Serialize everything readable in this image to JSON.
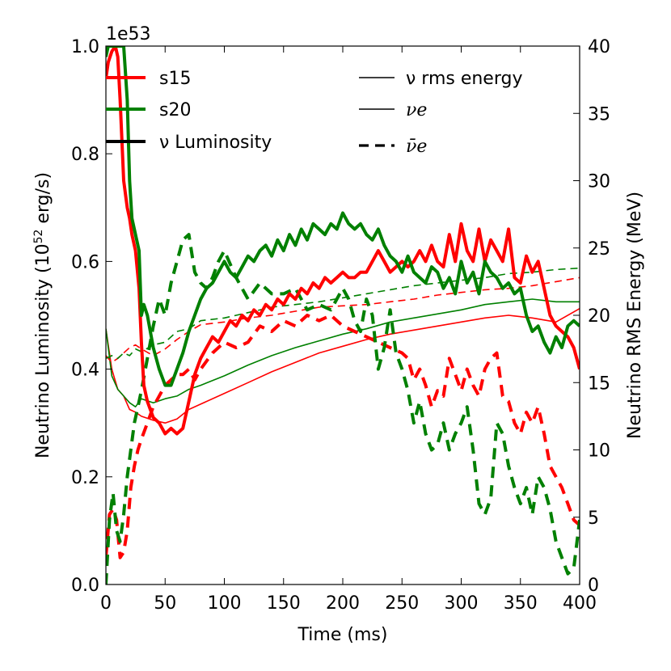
{
  "chart_data": {
    "type": "line",
    "xlabel": "Time (ms)",
    "ylabel_left": "Neutrino Luminosity (10",
    "ylabel_left_exp": "52",
    "ylabel_left_unit": " erg/s)",
    "ylabel_right": "Neutrino RMS Energy (MeV)",
    "offset_text": "1e53",
    "xlim": [
      0,
      400
    ],
    "ylim_left": [
      0.0,
      1.0
    ],
    "ylim_right": [
      0,
      40
    ],
    "x_ticks": [
      0,
      50,
      100,
      150,
      200,
      250,
      300,
      350,
      400
    ],
    "y_left_ticks": [
      "0.0",
      "0.2",
      "0.4",
      "0.6",
      "0.8",
      "1.0"
    ],
    "y_right_ticks": [
      0,
      5,
      10,
      15,
      20,
      25,
      30,
      35,
      40
    ],
    "colors": {
      "s15": "#ff0000",
      "s20": "#008000"
    },
    "legend_left": [
      {
        "label": "s15",
        "color": "#ff0000"
      },
      {
        "label": "s20",
        "color": "#008000"
      },
      {
        "label": "ν Luminosity",
        "color": "#000000"
      }
    ],
    "legend_right": [
      {
        "label": "ν rms energy",
        "style": "solid"
      },
      {
        "label": "νe",
        "style": "solid"
      },
      {
        "label": "ν̄e",
        "style": "dashed"
      }
    ],
    "series": [
      {
        "name": "s15 ν_e luminosity",
        "model": "s15",
        "flavor": "nue",
        "axis": "left",
        "style": "solid-thick",
        "x": [
          0,
          2,
          5,
          8,
          10,
          12,
          15,
          18,
          20,
          22,
          25,
          28,
          30,
          32,
          35,
          40,
          45,
          50,
          55,
          60,
          65,
          70,
          75,
          80,
          85,
          90,
          95,
          100,
          105,
          110,
          115,
          120,
          125,
          130,
          135,
          140,
          145,
          150,
          155,
          160,
          165,
          170,
          175,
          180,
          185,
          190,
          195,
          200,
          205,
          210,
          215,
          220,
          225,
          230,
          235,
          240,
          245,
          250,
          255,
          260,
          265,
          270,
          275,
          280,
          285,
          290,
          295,
          300,
          305,
          310,
          315,
          320,
          325,
          330,
          335,
          340,
          345,
          350,
          355,
          360,
          365,
          370,
          375,
          380,
          385,
          390,
          395,
          400
        ],
        "y": [
          0.94,
          0.97,
          0.99,
          1.0,
          0.98,
          0.9,
          0.75,
          0.7,
          0.68,
          0.65,
          0.62,
          0.55,
          0.45,
          0.37,
          0.34,
          0.31,
          0.3,
          0.28,
          0.29,
          0.28,
          0.29,
          0.34,
          0.39,
          0.42,
          0.44,
          0.46,
          0.45,
          0.47,
          0.49,
          0.48,
          0.5,
          0.49,
          0.51,
          0.5,
          0.52,
          0.51,
          0.53,
          0.52,
          0.54,
          0.53,
          0.55,
          0.54,
          0.56,
          0.55,
          0.57,
          0.56,
          0.57,
          0.58,
          0.57,
          0.57,
          0.58,
          0.58,
          0.6,
          0.62,
          0.6,
          0.58,
          0.59,
          0.6,
          0.59,
          0.6,
          0.62,
          0.6,
          0.63,
          0.6,
          0.59,
          0.65,
          0.6,
          0.67,
          0.62,
          0.6,
          0.66,
          0.6,
          0.64,
          0.62,
          0.6,
          0.66,
          0.57,
          0.56,
          0.61,
          0.58,
          0.6,
          0.55,
          0.5,
          0.48,
          0.47,
          0.46,
          0.44,
          0.4
        ]
      },
      {
        "name": "s20 ν_e luminosity",
        "model": "s20",
        "flavor": "nue",
        "axis": "left",
        "style": "solid-thick",
        "x": [
          0,
          2,
          5,
          8,
          10,
          12,
          15,
          18,
          20,
          22,
          25,
          28,
          30,
          32,
          35,
          40,
          45,
          50,
          55,
          60,
          65,
          70,
          75,
          80,
          85,
          90,
          95,
          100,
          105,
          110,
          115,
          120,
          125,
          130,
          135,
          140,
          145,
          150,
          155,
          160,
          165,
          170,
          175,
          180,
          185,
          190,
          195,
          200,
          205,
          210,
          215,
          220,
          225,
          230,
          235,
          240,
          245,
          250,
          255,
          260,
          265,
          270,
          275,
          280,
          285,
          290,
          295,
          300,
          305,
          310,
          315,
          320,
          325,
          330,
          335,
          340,
          345,
          350,
          355,
          360,
          365,
          370,
          375,
          380,
          385,
          390,
          395,
          400
        ],
        "y": [
          0.98,
          1.0,
          1.0,
          1.0,
          1.0,
          1.0,
          1.0,
          0.9,
          0.75,
          0.68,
          0.65,
          0.62,
          0.5,
          0.52,
          0.5,
          0.44,
          0.4,
          0.37,
          0.37,
          0.4,
          0.43,
          0.47,
          0.5,
          0.53,
          0.55,
          0.56,
          0.58,
          0.6,
          0.58,
          0.57,
          0.59,
          0.61,
          0.6,
          0.62,
          0.63,
          0.61,
          0.64,
          0.62,
          0.65,
          0.63,
          0.66,
          0.64,
          0.67,
          0.66,
          0.65,
          0.67,
          0.66,
          0.69,
          0.67,
          0.66,
          0.67,
          0.65,
          0.64,
          0.66,
          0.63,
          0.61,
          0.6,
          0.58,
          0.61,
          0.58,
          0.57,
          0.56,
          0.59,
          0.58,
          0.55,
          0.57,
          0.54,
          0.6,
          0.56,
          0.58,
          0.54,
          0.6,
          0.58,
          0.57,
          0.55,
          0.56,
          0.54,
          0.55,
          0.5,
          0.47,
          0.48,
          0.45,
          0.43,
          0.46,
          0.44,
          0.48,
          0.49,
          0.48
        ]
      },
      {
        "name": "s15 ν_e rms energy",
        "model": "s15",
        "flavor": "nue",
        "axis": "right",
        "style": "solid-thin",
        "x": [
          0,
          5,
          10,
          15,
          20,
          25,
          30,
          40,
          50,
          60,
          70,
          80,
          100,
          120,
          140,
          160,
          180,
          200,
          220,
          240,
          260,
          280,
          300,
          320,
          340,
          360,
          380,
          400
        ],
        "y": [
          19,
          16,
          14.5,
          14,
          13,
          12.8,
          12.5,
          12.2,
          12,
          12.3,
          13,
          13.4,
          14.2,
          15,
          15.8,
          16.5,
          17.2,
          17.7,
          18.2,
          18.6,
          18.9,
          19.2,
          19.5,
          19.8,
          20,
          19.8,
          19.5,
          20.5
        ]
      },
      {
        "name": "s20 ν_e rms energy",
        "model": "s20",
        "flavor": "nue",
        "axis": "right",
        "style": "solid-thin",
        "x": [
          0,
          5,
          10,
          15,
          20,
          25,
          30,
          40,
          50,
          60,
          70,
          80,
          100,
          120,
          140,
          160,
          180,
          200,
          220,
          240,
          260,
          280,
          300,
          320,
          340,
          360,
          380,
          400
        ],
        "y": [
          19,
          15.5,
          14.5,
          14,
          13.5,
          13.2,
          13.8,
          13.5,
          13.8,
          14,
          14.5,
          14.8,
          15.5,
          16.3,
          17,
          17.6,
          18.1,
          18.6,
          19,
          19.5,
          19.8,
          20.1,
          20.4,
          20.8,
          21,
          21.2,
          21,
          21
        ]
      },
      {
        "name": "s15 anti-ν_e rms energy",
        "model": "s15",
        "flavor": "nuebar",
        "axis": "right",
        "style": "dashed-thin",
        "x": [
          0,
          5,
          10,
          15,
          20,
          25,
          30,
          40,
          50,
          60,
          70,
          80,
          100,
          120,
          140,
          160,
          180,
          200,
          220,
          240,
          260,
          280,
          300,
          320,
          340,
          360,
          380,
          400
        ],
        "y": [
          17,
          16.5,
          16.8,
          17.2,
          17.6,
          17.8,
          17.5,
          17,
          17.5,
          18.2,
          18.8,
          19.3,
          19.5,
          19.8,
          20,
          20.3,
          20.6,
          20.7,
          20.8,
          21,
          21.2,
          21.5,
          21.7,
          21.9,
          22,
          22.2,
          22.5,
          22.8
        ]
      },
      {
        "name": "s20 anti-ν_e rms energy",
        "model": "s20",
        "flavor": "nuebar",
        "axis": "right",
        "style": "dashed-thin",
        "x": [
          0,
          5,
          10,
          15,
          20,
          25,
          30,
          40,
          50,
          60,
          70,
          80,
          100,
          120,
          140,
          160,
          180,
          200,
          220,
          240,
          260,
          280,
          300,
          320,
          340,
          360,
          380,
          400
        ],
        "y": [
          16.8,
          17,
          16.8,
          17.2,
          17,
          17.5,
          17.3,
          17.8,
          18,
          18.8,
          19,
          19.6,
          19.8,
          20.2,
          20.6,
          20.8,
          21,
          21.3,
          21.6,
          21.9,
          22.2,
          22.4,
          22.6,
          22.8,
          23.1,
          23.2,
          23.4,
          23.5
        ]
      },
      {
        "name": "s15 anti-ν_e luminosity",
        "model": "s15",
        "flavor": "nuebar",
        "axis": "left",
        "style": "dashed-thick",
        "x": [
          0,
          3,
          6,
          9,
          12,
          15,
          18,
          21,
          24,
          27,
          30,
          35,
          40,
          45,
          50,
          55,
          60,
          65,
          70,
          75,
          80,
          90,
          100,
          110,
          120,
          130,
          140,
          150,
          160,
          170,
          180,
          190,
          200,
          210,
          220,
          230,
          240,
          250,
          255,
          260,
          265,
          270,
          275,
          280,
          285,
          290,
          295,
          300,
          305,
          310,
          315,
          320,
          325,
          330,
          335,
          340,
          345,
          350,
          355,
          360,
          365,
          370,
          375,
          380,
          385,
          390,
          395,
          400
        ],
        "y": [
          0.05,
          0.13,
          0.14,
          0.12,
          0.05,
          0.06,
          0.1,
          0.18,
          0.22,
          0.25,
          0.27,
          0.3,
          0.33,
          0.35,
          0.37,
          0.38,
          0.39,
          0.39,
          0.4,
          0.38,
          0.4,
          0.43,
          0.45,
          0.44,
          0.45,
          0.48,
          0.47,
          0.49,
          0.48,
          0.5,
          0.49,
          0.5,
          0.48,
          0.47,
          0.46,
          0.45,
          0.44,
          0.43,
          0.42,
          0.38,
          0.4,
          0.37,
          0.33,
          0.36,
          0.35,
          0.42,
          0.39,
          0.36,
          0.4,
          0.37,
          0.35,
          0.4,
          0.42,
          0.43,
          0.35,
          0.34,
          0.3,
          0.28,
          0.32,
          0.3,
          0.33,
          0.28,
          0.22,
          0.2,
          0.18,
          0.15,
          0.12,
          0.11
        ]
      },
      {
        "name": "s20 anti-ν_e luminosity",
        "model": "s20",
        "flavor": "nuebar",
        "axis": "left",
        "style": "dashed-thick",
        "x": [
          0,
          3,
          6,
          9,
          12,
          15,
          18,
          21,
          24,
          27,
          30,
          35,
          40,
          45,
          50,
          55,
          60,
          65,
          70,
          75,
          80,
          85,
          90,
          95,
          100,
          110,
          120,
          130,
          140,
          150,
          160,
          170,
          180,
          190,
          200,
          205,
          210,
          215,
          220,
          225,
          230,
          235,
          240,
          245,
          250,
          255,
          260,
          265,
          270,
          275,
          280,
          285,
          290,
          295,
          300,
          305,
          310,
          315,
          320,
          325,
          330,
          335,
          340,
          345,
          350,
          355,
          360,
          365,
          370,
          375,
          380,
          385,
          390,
          395,
          400
        ],
        "y": [
          0.0,
          0.12,
          0.17,
          0.1,
          0.08,
          0.13,
          0.2,
          0.25,
          0.3,
          0.33,
          0.36,
          0.42,
          0.48,
          0.53,
          0.5,
          0.56,
          0.6,
          0.64,
          0.65,
          0.58,
          0.56,
          0.55,
          0.57,
          0.6,
          0.62,
          0.57,
          0.53,
          0.56,
          0.54,
          0.54,
          0.55,
          0.51,
          0.52,
          0.51,
          0.55,
          0.53,
          0.49,
          0.47,
          0.53,
          0.5,
          0.4,
          0.44,
          0.51,
          0.43,
          0.4,
          0.36,
          0.3,
          0.34,
          0.28,
          0.25,
          0.26,
          0.3,
          0.25,
          0.28,
          0.3,
          0.33,
          0.25,
          0.15,
          0.13,
          0.16,
          0.3,
          0.28,
          0.22,
          0.18,
          0.15,
          0.18,
          0.13,
          0.2,
          0.18,
          0.14,
          0.08,
          0.05,
          0.02,
          0.03,
          0.12
        ]
      }
    ]
  }
}
